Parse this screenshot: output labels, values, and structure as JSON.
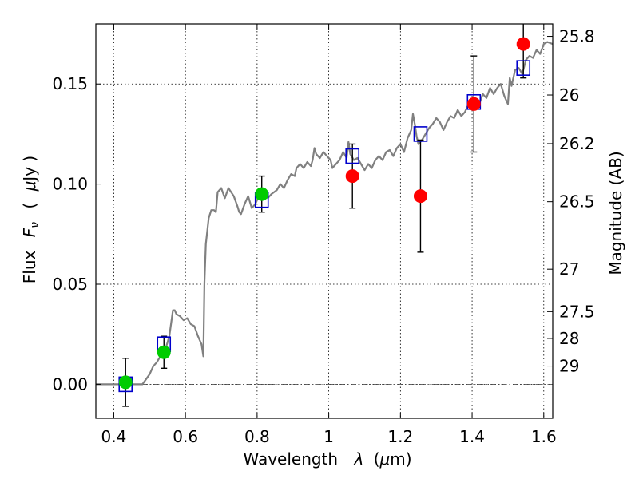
{
  "chart_data": {
    "type": "scatter",
    "xlabel_prefix": "Wavelength",
    "xlabel_symbol": "λ",
    "xlabel_unit_open": "(",
    "xlabel_unit_mu": "μ",
    "xlabel_unit_rest": "m)",
    "ylabel_prefix": "Flux",
    "ylabel_symbol": "F",
    "ylabel_sub": "ν",
    "ylabel_unit_open": "(",
    "ylabel_unit_mu": "μ",
    "ylabel_unit_rest": "Jy )",
    "y2label": "Magnitude (AB)",
    "xlim": [
      0.35,
      1.625
    ],
    "ylim": [
      -0.017,
      0.18
    ],
    "grid": true,
    "xticks": [
      {
        "value": 0.4,
        "label": "0.4"
      },
      {
        "value": 0.6,
        "label": "0.6"
      },
      {
        "value": 0.8,
        "label": "0.8"
      },
      {
        "value": 1.0,
        "label": "1"
      },
      {
        "value": 1.2,
        "label": "1.2"
      },
      {
        "value": 1.4,
        "label": "1.4"
      },
      {
        "value": 1.6,
        "label": "1.6"
      }
    ],
    "yticks": [
      {
        "value": 0.0,
        "label": "0.00"
      },
      {
        "value": 0.05,
        "label": "0.05"
      },
      {
        "value": 0.1,
        "label": "0.10"
      },
      {
        "value": 0.15,
        "label": "0.15"
      }
    ],
    "mag_ticks": [
      {
        "flux": 0.1738,
        "label": "25.8"
      },
      {
        "flux": 0.1445,
        "label": "26"
      },
      {
        "flux": 0.1202,
        "label": "26.2"
      },
      {
        "flux": 0.0912,
        "label": "26.5"
      },
      {
        "flux": 0.0575,
        "label": "27"
      },
      {
        "flux": 0.0363,
        "label": "27.5"
      },
      {
        "flux": 0.0229,
        "label": "28"
      },
      {
        "flux": 0.0091,
        "label": "29"
      }
    ],
    "zero_line": 0.0,
    "sed_model": {
      "color": "#808080",
      "points": [
        [
          0.35,
          0.0
        ],
        [
          0.48,
          0.0
        ],
        [
          0.5,
          0.005
        ],
        [
          0.51,
          0.009
        ],
        [
          0.52,
          0.011
        ],
        [
          0.53,
          0.014
        ],
        [
          0.545,
          0.018
        ],
        [
          0.555,
          0.024
        ],
        [
          0.565,
          0.037
        ],
        [
          0.57,
          0.037
        ],
        [
          0.575,
          0.035
        ],
        [
          0.585,
          0.034
        ],
        [
          0.595,
          0.032
        ],
        [
          0.605,
          0.033
        ],
        [
          0.615,
          0.03
        ],
        [
          0.625,
          0.029
        ],
        [
          0.635,
          0.024
        ],
        [
          0.645,
          0.02
        ],
        [
          0.65,
          0.014
        ],
        [
          0.653,
          0.05
        ],
        [
          0.657,
          0.07
        ],
        [
          0.665,
          0.083
        ],
        [
          0.672,
          0.087
        ],
        [
          0.68,
          0.087
        ],
        [
          0.685,
          0.086
        ],
        [
          0.69,
          0.096
        ],
        [
          0.7,
          0.098
        ],
        [
          0.71,
          0.093
        ],
        [
          0.72,
          0.098
        ],
        [
          0.735,
          0.094
        ],
        [
          0.745,
          0.089
        ],
        [
          0.75,
          0.086
        ],
        [
          0.755,
          0.085
        ],
        [
          0.765,
          0.09
        ],
        [
          0.775,
          0.094
        ],
        [
          0.785,
          0.088
        ],
        [
          0.795,
          0.09
        ],
        [
          0.805,
          0.094
        ],
        [
          0.815,
          0.096
        ],
        [
          0.83,
          0.093
        ],
        [
          0.84,
          0.095
        ],
        [
          0.855,
          0.097
        ],
        [
          0.865,
          0.1
        ],
        [
          0.875,
          0.098
        ],
        [
          0.885,
          0.102
        ],
        [
          0.895,
          0.105
        ],
        [
          0.905,
          0.104
        ],
        [
          0.91,
          0.108
        ],
        [
          0.92,
          0.11
        ],
        [
          0.93,
          0.108
        ],
        [
          0.94,
          0.111
        ],
        [
          0.95,
          0.109
        ],
        [
          0.955,
          0.112
        ],
        [
          0.96,
          0.118
        ],
        [
          0.965,
          0.115
        ],
        [
          0.975,
          0.113
        ],
        [
          0.985,
          0.116
        ],
        [
          0.995,
          0.114
        ],
        [
          1.005,
          0.112
        ],
        [
          1.01,
          0.108
        ],
        [
          1.02,
          0.11
        ],
        [
          1.03,
          0.112
        ],
        [
          1.04,
          0.116
        ],
        [
          1.05,
          0.113
        ],
        [
          1.055,
          0.121
        ],
        [
          1.06,
          0.115
        ],
        [
          1.07,
          0.112
        ],
        [
          1.08,
          0.113
        ],
        [
          1.09,
          0.11
        ],
        [
          1.1,
          0.107
        ],
        [
          1.11,
          0.11
        ],
        [
          1.12,
          0.108
        ],
        [
          1.13,
          0.112
        ],
        [
          1.14,
          0.114
        ],
        [
          1.15,
          0.112
        ],
        [
          1.16,
          0.116
        ],
        [
          1.17,
          0.117
        ],
        [
          1.18,
          0.114
        ],
        [
          1.19,
          0.118
        ],
        [
          1.2,
          0.12
        ],
        [
          1.21,
          0.116
        ],
        [
          1.22,
          0.123
        ],
        [
          1.23,
          0.127
        ],
        [
          1.235,
          0.135
        ],
        [
          1.24,
          0.13
        ],
        [
          1.245,
          0.124
        ],
        [
          1.25,
          0.12
        ],
        [
          1.26,
          0.122
        ],
        [
          1.27,
          0.125
        ],
        [
          1.28,
          0.128
        ],
        [
          1.29,
          0.13
        ],
        [
          1.3,
          0.133
        ],
        [
          1.31,
          0.131
        ],
        [
          1.32,
          0.127
        ],
        [
          1.33,
          0.131
        ],
        [
          1.34,
          0.134
        ],
        [
          1.35,
          0.133
        ],
        [
          1.36,
          0.137
        ],
        [
          1.37,
          0.134
        ],
        [
          1.38,
          0.136
        ],
        [
          1.39,
          0.14
        ],
        [
          1.4,
          0.141
        ],
        [
          1.41,
          0.139
        ],
        [
          1.42,
          0.14
        ],
        [
          1.43,
          0.145
        ],
        [
          1.44,
          0.143
        ],
        [
          1.45,
          0.148
        ],
        [
          1.46,
          0.145
        ],
        [
          1.47,
          0.148
        ],
        [
          1.48,
          0.15
        ],
        [
          1.49,
          0.144
        ],
        [
          1.5,
          0.14
        ],
        [
          1.505,
          0.153
        ],
        [
          1.51,
          0.149
        ],
        [
          1.52,
          0.157
        ],
        [
          1.53,
          0.158
        ],
        [
          1.54,
          0.155
        ],
        [
          1.55,
          0.162
        ],
        [
          1.56,
          0.164
        ],
        [
          1.57,
          0.163
        ],
        [
          1.58,
          0.167
        ],
        [
          1.59,
          0.165
        ],
        [
          1.6,
          0.17
        ],
        [
          1.61,
          0.171
        ],
        [
          1.625,
          0.17
        ]
      ]
    },
    "series": [
      {
        "name": "model_photometry",
        "marker": "square",
        "color": "#0000cc",
        "points": [
          {
            "x": 0.433,
            "y": 0.0
          },
          {
            "x": 0.54,
            "y": 0.02
          },
          {
            "x": 0.813,
            "y": 0.092
          },
          {
            "x": 1.066,
            "y": 0.114
          },
          {
            "x": 1.256,
            "y": 0.125
          },
          {
            "x": 1.405,
            "y": 0.141
          },
          {
            "x": 1.543,
            "y": 0.158
          }
        ]
      },
      {
        "name": "observed_optical",
        "marker": "circle",
        "color": "#00cc00",
        "points": [
          {
            "x": 0.433,
            "y": 0.001,
            "err": 0.012
          },
          {
            "x": 0.54,
            "y": 0.016,
            "err": 0.008
          },
          {
            "x": 0.813,
            "y": 0.095,
            "err": 0.009
          }
        ]
      },
      {
        "name": "observed_nir",
        "marker": "circle",
        "color": "#ff0000",
        "points": [
          {
            "x": 1.066,
            "y": 0.104,
            "err": 0.016
          },
          {
            "x": 1.256,
            "y": 0.094,
            "err": 0.028
          },
          {
            "x": 1.405,
            "y": 0.14,
            "err": 0.024
          },
          {
            "x": 1.543,
            "y": 0.17,
            "err": 0.017
          }
        ]
      }
    ]
  }
}
